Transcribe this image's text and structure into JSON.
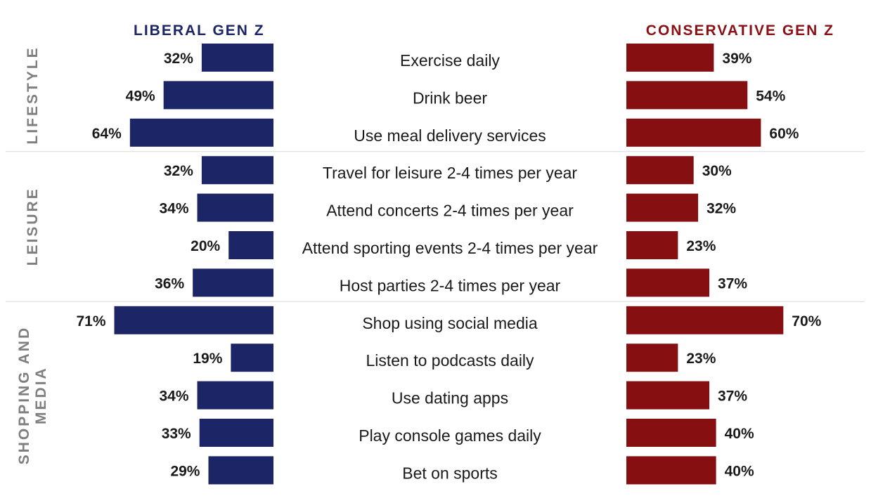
{
  "chart_data": {
    "type": "bar",
    "title": "",
    "series": [
      {
        "name": "LIBERAL GEN Z",
        "color": "#1c2565",
        "values": [
          32,
          49,
          64,
          32,
          34,
          20,
          36,
          71,
          19,
          34,
          33,
          29
        ]
      },
      {
        "name": "CONSERVATIVE GEN Z",
        "color": "#860f12",
        "values": [
          39,
          54,
          60,
          30,
          32,
          23,
          37,
          70,
          23,
          37,
          40,
          40
        ]
      }
    ],
    "categories": [
      "Exercise daily",
      "Drink beer",
      "Use meal delivery services",
      "Travel for leisure 2-4 times per year",
      "Attend concerts 2-4 times per year",
      "Attend sporting events 2-4 times per year",
      "Host parties 2-4 times per year",
      "Shop using social media",
      "Listen to podcasts daily",
      "Use dating apps",
      "Play console games daily",
      "Bet on sports"
    ],
    "groups": [
      {
        "label": "LIFESTYLE",
        "lines": [
          "LIFESTYLE"
        ],
        "count": 3
      },
      {
        "label": "LEISURE",
        "lines": [
          "LEISURE"
        ],
        "count": 4
      },
      {
        "label": "SHOPPING AND MEDIA",
        "lines": [
          "SHOPPING AND",
          "MEDIA"
        ],
        "count": 5
      }
    ],
    "value_suffix": "%",
    "group_label_color": "#7f7f7f",
    "label_color": "#1a1a1a"
  }
}
